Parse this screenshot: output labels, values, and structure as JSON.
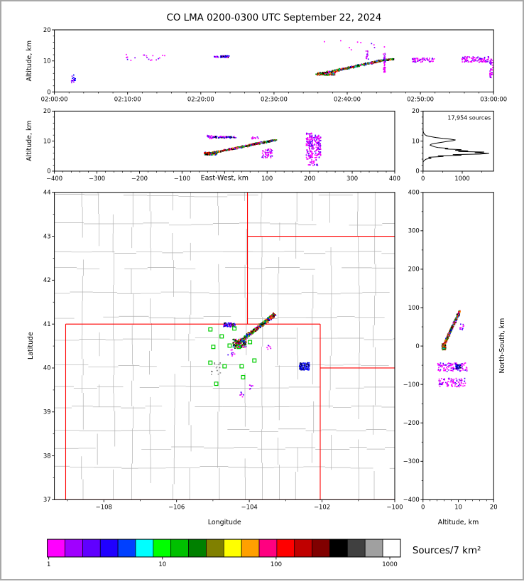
{
  "title": "CO LMA 0200-0300 UTC September 22, 2024",
  "palettes": {
    "flash": [
      "#000000",
      "#000000",
      "#aa0000",
      "#ff0000",
      "#ff8000",
      "#009900",
      "#00bb00",
      "#0000ff",
      "#00bbbb",
      "#ff00ff",
      "#7a5c00"
    ],
    "sparse": [
      "#ff00ff",
      "#ff00ff",
      "#ff00ff",
      "#cc00ee",
      "#8800ff",
      "#4400ff"
    ],
    "sparse2": [
      "#0000ff",
      "#0000ff",
      "#000000",
      "#ff00ff",
      "#8800ff"
    ],
    "sparseBlue": [
      "#0000ff",
      "#0000ff",
      "#ff00ff",
      "#9900ff"
    ],
    "blueblob": [
      "#0000ff",
      "#0000ff",
      "#000099",
      "#000000",
      "#3333ff"
    ],
    "gray": [
      "#999999",
      "#777777"
    ]
  },
  "colorbar": {
    "label": "Sources/7 km²",
    "tick_labels": [
      "1",
      "10",
      "100",
      "1000"
    ],
    "tick_values": [
      1,
      10,
      100,
      1000
    ],
    "colors": [
      "#ff00ff",
      "#a000ff",
      "#6000ff",
      "#2000ff",
      "#0040ff",
      "#00ffff",
      "#00ff00",
      "#00c000",
      "#008000",
      "#808000",
      "#ffff00",
      "#ffa000",
      "#ff0080",
      "#ff0000",
      "#c00000",
      "#800000",
      "#000000",
      "#404040",
      "#a0a0a0",
      "#ffffff"
    ]
  },
  "chart_data": [
    {
      "id": "time_height",
      "type": "scatter",
      "ylabel": "Altitude, km",
      "xlim": [
        0,
        3600
      ],
      "ylim": [
        0,
        20
      ],
      "xticks": {
        "values": [
          0,
          600,
          1200,
          1800,
          2400,
          3000,
          3600
        ],
        "labels": [
          "02:00:00",
          "02:10:00",
          "02:20:00",
          "02:30:00",
          "02:40:00",
          "02:50:00",
          "03:00:00"
        ]
      },
      "xminor": 120,
      "yticks": {
        "values": [
          0,
          10,
          20
        ],
        "labels": [
          "0",
          "10",
          "20"
        ]
      },
      "yminor": 2,
      "clusters": [
        {
          "kind": "line",
          "x0": 2160,
          "x1": 2690,
          "y0": 5.6,
          "y1": 10.2,
          "jx": 25,
          "jy": 0.3,
          "n": 600,
          "palette": "flash"
        },
        {
          "kind": "line",
          "x0": 2690,
          "x1": 2780,
          "y0": 10.2,
          "y1": 10.6,
          "jx": 12,
          "jy": 0.25,
          "n": 110,
          "palette": "flash"
        },
        {
          "kind": "box",
          "x0": 2697,
          "x1": 2712,
          "y0": 6.0,
          "y1": 12.5,
          "n": 40,
          "palette": "sparse"
        },
        {
          "kind": "box",
          "x0": 2555,
          "x1": 2575,
          "y0": 10.5,
          "y1": 13.5,
          "n": 14,
          "palette": "sparse"
        },
        {
          "kind": "box",
          "x0": 1360,
          "x1": 1432,
          "y0": 11.1,
          "y1": 11.65,
          "n": 55,
          "palette": "sparse2"
        },
        {
          "kind": "box",
          "x0": 1308,
          "x1": 1342,
          "y0": 11.15,
          "y1": 11.5,
          "n": 14,
          "palette": "sparse"
        },
        {
          "kind": "box",
          "x0": 580,
          "x1": 930,
          "y0": 10.2,
          "y1": 12.2,
          "n": 20,
          "palette": "sparse"
        },
        {
          "kind": "box",
          "x0": 140,
          "x1": 172,
          "y0": 3.0,
          "y1": 5.6,
          "n": 16,
          "palette": "sparseBlue"
        },
        {
          "kind": "box",
          "x0": 2930,
          "x1": 3120,
          "y0": 9.6,
          "y1": 10.9,
          "n": 60,
          "palette": "sparse"
        },
        {
          "kind": "box",
          "x0": 3340,
          "x1": 3560,
          "y0": 9.6,
          "y1": 11.4,
          "n": 95,
          "palette": "sparse"
        },
        {
          "kind": "box",
          "x0": 3568,
          "x1": 3592,
          "y0": 4.5,
          "y1": 11.0,
          "n": 40,
          "palette": "sparse"
        },
        {
          "kind": "box",
          "x0": 2100,
          "x1": 2720,
          "y0": 13.4,
          "y1": 16.5,
          "n": 10,
          "palette": "sparse"
        },
        {
          "kind": "box",
          "x0": 2160,
          "x1": 2300,
          "y0": 5.4,
          "y1": 6.3,
          "n": 110,
          "palette": "flash"
        }
      ]
    },
    {
      "id": "ew_height",
      "type": "scatter",
      "xlabel": "East-West, km",
      "ylabel": "Altitude, km",
      "xlim": [
        -400,
        400
      ],
      "ylim": [
        0,
        20
      ],
      "xticks": {
        "values": [
          -400,
          -300,
          -200,
          -100,
          0,
          100,
          200,
          300,
          400
        ],
        "labels": [
          "−400",
          "−300",
          "−200",
          "−100",
          "",
          "100",
          "200",
          "300",
          "400"
        ]
      },
      "xminor": 20,
      "yticks": {
        "values": [
          0,
          10,
          20
        ],
        "labels": [
          "0",
          "10",
          "20"
        ]
      },
      "yminor": 2,
      "clusters": [
        {
          "kind": "line",
          "x0": -45,
          "x1": 120,
          "y0": 5.6,
          "y1": 10.4,
          "jx": 7,
          "jy": 0.3,
          "n": 600,
          "palette": "flash"
        },
        {
          "kind": "box",
          "x0": -48,
          "x1": -18,
          "y0": 5.4,
          "y1": 6.3,
          "n": 110,
          "palette": "flash"
        },
        {
          "kind": "box",
          "x0": -32,
          "x1": 28,
          "y0": 11.0,
          "y1": 11.6,
          "n": 65,
          "palette": "sparse2"
        },
        {
          "kind": "box",
          "x0": -42,
          "x1": -26,
          "y0": 10.8,
          "y1": 11.9,
          "n": 18,
          "palette": "sparse"
        },
        {
          "kind": "box",
          "x0": 88,
          "x1": 112,
          "y0": 4.3,
          "y1": 7.5,
          "n": 50,
          "palette": "sparse"
        },
        {
          "kind": "box",
          "x0": 192,
          "x1": 208,
          "y0": 4.0,
          "y1": 12.8,
          "n": 120,
          "palette": "sparse"
        },
        {
          "kind": "box",
          "x0": 210,
          "x1": 226,
          "y0": 4.5,
          "y1": 12.0,
          "n": 100,
          "palette": "sparse"
        },
        {
          "kind": "box",
          "x0": 196,
          "x1": 222,
          "y0": 1.8,
          "y1": 3.8,
          "n": 22,
          "palette": "sparse"
        },
        {
          "kind": "box",
          "x0": 60,
          "x1": 80,
          "y0": 10.6,
          "y1": 11.4,
          "n": 12,
          "palette": "sparse"
        }
      ]
    },
    {
      "id": "alt_histogram",
      "type": "line",
      "annotation": "17,954 sources",
      "xlim": [
        0,
        1800
      ],
      "ylim": [
        0,
        20
      ],
      "xticks": {
        "values": [
          0,
          1000
        ],
        "labels": [
          "0",
          "1000"
        ]
      },
      "xminor": 500,
      "yticks": {
        "values": [
          0,
          10,
          20
        ],
        "labels": [
          "0",
          "10",
          "20"
        ]
      },
      "yminor": 2,
      "points": [
        [
          0,
          0
        ],
        [
          0,
          3.0
        ],
        [
          25,
          3.5
        ],
        [
          80,
          4.0
        ],
        [
          210,
          4.3
        ],
        [
          140,
          4.6
        ],
        [
          520,
          4.9
        ],
        [
          380,
          5.1
        ],
        [
          980,
          5.3
        ],
        [
          760,
          5.5
        ],
        [
          1450,
          5.7
        ],
        [
          1685,
          5.95
        ],
        [
          1320,
          6.15
        ],
        [
          1560,
          6.35
        ],
        [
          900,
          6.55
        ],
        [
          1150,
          6.75
        ],
        [
          820,
          6.95
        ],
        [
          980,
          7.15
        ],
        [
          560,
          7.4
        ],
        [
          640,
          7.6
        ],
        [
          380,
          7.85
        ],
        [
          300,
          8.1
        ],
        [
          230,
          8.4
        ],
        [
          180,
          8.7
        ],
        [
          210,
          9.0
        ],
        [
          320,
          9.3
        ],
        [
          470,
          9.6
        ],
        [
          620,
          9.9
        ],
        [
          760,
          10.15
        ],
        [
          830,
          10.4
        ],
        [
          700,
          10.65
        ],
        [
          520,
          10.9
        ],
        [
          330,
          11.2
        ],
        [
          190,
          11.5
        ],
        [
          90,
          11.8
        ],
        [
          45,
          12.2
        ],
        [
          18,
          12.7
        ],
        [
          6,
          13.2
        ],
        [
          0,
          13.8
        ],
        [
          0,
          20
        ]
      ]
    },
    {
      "id": "plan_view",
      "type": "scatter",
      "xlabel": "Longitude",
      "ylabel": "Latitude",
      "xlim": [
        -109.36,
        -100
      ],
      "ylim": [
        37,
        44
      ],
      "xticks": {
        "values": [
          -108,
          -106,
          -104,
          -102,
          -100
        ],
        "labels": [
          "−108",
          "−106",
          "−104",
          "−102",
          "−100"
        ]
      },
      "xminor": 1,
      "yticks": {
        "values": [
          37,
          38,
          39,
          40,
          41,
          42,
          43,
          44
        ],
        "labels": [
          "37",
          "38",
          "39",
          "40",
          "41",
          "42",
          "43",
          "44"
        ]
      },
      "yminor": 0.5,
      "county_color": "#b0b0b0",
      "state_border_color": "#ff0000",
      "station_color": "#00cc00",
      "state_borders": [
        [
          [
            -109.05,
            37
          ],
          [
            -109.05,
            41
          ]
        ],
        [
          [
            -109.05,
            41
          ],
          [
            -102.05,
            41
          ]
        ],
        [
          [
            -109.36,
            37
          ],
          [
            -100,
            37
          ]
        ],
        [
          [
            -102.05,
            37
          ],
          [
            -102.05,
            41
          ]
        ],
        [
          [
            -102.05,
            40
          ],
          [
            -100,
            40
          ]
        ],
        [
          [
            -104.05,
            41
          ],
          [
            -104.05,
            44
          ]
        ],
        [
          [
            -104.05,
            43
          ],
          [
            -100,
            43
          ]
        ]
      ],
      "stations": [
        [
          -105.07,
          40.88
        ],
        [
          -104.76,
          40.72
        ],
        [
          -104.41,
          40.9
        ],
        [
          -104.54,
          40.51
        ],
        [
          -104.99,
          40.48
        ],
        [
          -104.29,
          40.48
        ],
        [
          -103.98,
          40.59
        ],
        [
          -105.07,
          40.12
        ],
        [
          -104.68,
          40.04
        ],
        [
          -104.21,
          40.04
        ],
        [
          -103.86,
          40.17
        ],
        [
          -104.17,
          39.79
        ],
        [
          -104.91,
          39.64
        ]
      ],
      "clusters": [
        {
          "kind": "line",
          "x0": -104.38,
          "x1": -103.3,
          "y0": 40.52,
          "y1": 41.22,
          "jx": 0.05,
          "jy": 0.045,
          "n": 520,
          "palette": "flash"
        },
        {
          "kind": "box",
          "x0": -104.45,
          "x1": -104.08,
          "y0": 40.45,
          "y1": 40.66,
          "n": 130,
          "palette": "flash"
        },
        {
          "kind": "box",
          "x0": -104.72,
          "x1": -104.38,
          "y0": 40.93,
          "y1": 41.03,
          "n": 55,
          "palette": "sparse2"
        },
        {
          "kind": "box",
          "x0": -102.62,
          "x1": -102.35,
          "y0": 39.95,
          "y1": 40.12,
          "n": 110,
          "palette": "blueblob"
        },
        {
          "kind": "box",
          "x0": -105.05,
          "x1": -104.75,
          "y0": 39.85,
          "y1": 40.15,
          "n": 13,
          "palette": "gray"
        },
        {
          "kind": "box",
          "x0": -104.27,
          "x1": -104.15,
          "y0": 39.33,
          "y1": 39.45,
          "n": 7,
          "palette": "sparse"
        },
        {
          "kind": "box",
          "x0": -104.02,
          "x1": -103.9,
          "y0": 39.5,
          "y1": 39.62,
          "n": 6,
          "palette": "sparse"
        },
        {
          "kind": "box",
          "x0": -104.6,
          "x1": -104.4,
          "y0": 40.25,
          "y1": 40.42,
          "n": 9,
          "palette": "sparse"
        },
        {
          "kind": "box",
          "x0": -103.55,
          "x1": -103.4,
          "y0": 40.42,
          "y1": 40.52,
          "n": 6,
          "palette": "sparse"
        }
      ]
    },
    {
      "id": "ns_height",
      "type": "scatter",
      "xlabel": "Altitude, km",
      "ylabel": "North-South, km",
      "xlim": [
        0,
        20
      ],
      "ylim": [
        -400,
        400
      ],
      "xticks": {
        "values": [
          0,
          10,
          20
        ],
        "labels": [
          "0",
          "10",
          "20"
        ]
      },
      "xminor": 2,
      "yticks": {
        "values": [
          -400,
          -300,
          -200,
          -100,
          0,
          100,
          200,
          300,
          400
        ],
        "labels": [
          "−400",
          "−300",
          "−200",
          "−100",
          "0",
          "100",
          "200",
          "300",
          "400"
        ]
      },
      "yminor": 50,
      "clusters": [
        {
          "kind": "line",
          "x0": 5.6,
          "x1": 10.4,
          "y0": -4,
          "y1": 90,
          "jx": 0.3,
          "jy": 5,
          "n": 520,
          "palette": "flash"
        },
        {
          "kind": "box",
          "x0": 5.4,
          "x1": 6.4,
          "y0": -10,
          "y1": 6,
          "n": 100,
          "palette": "flash"
        },
        {
          "kind": "box",
          "x0": 4.2,
          "x1": 12.8,
          "y0": -66,
          "y1": -44,
          "n": 100,
          "palette": "sparse"
        },
        {
          "kind": "box",
          "x0": 4.5,
          "x1": 12.0,
          "y0": -106,
          "y1": -84,
          "n": 85,
          "palette": "sparse"
        },
        {
          "kind": "box",
          "x0": 9.2,
          "x1": 10.6,
          "y0": -60,
          "y1": -48,
          "n": 35,
          "palette": "blueblob"
        },
        {
          "kind": "box",
          "x0": 10.4,
          "x1": 12.0,
          "y0": 40,
          "y1": 58,
          "n": 10,
          "palette": "sparse"
        }
      ]
    }
  ]
}
